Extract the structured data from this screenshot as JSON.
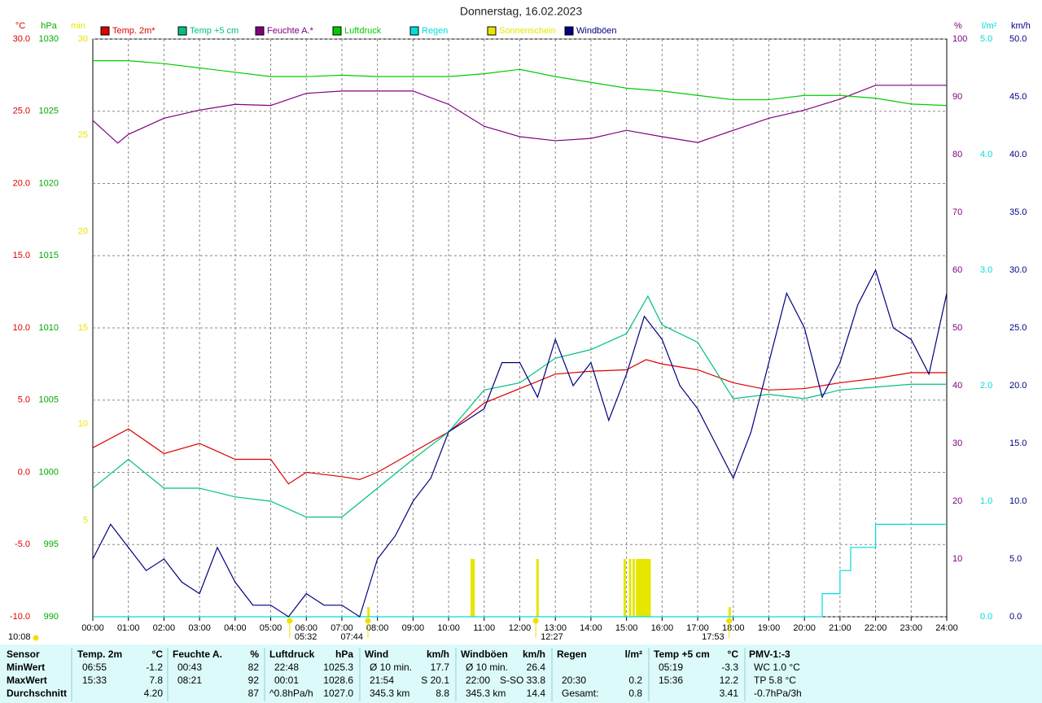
{
  "chart_data": {
    "type": "line",
    "title": "Donnerstag, 16.02.2023",
    "grid": true,
    "xlim": [
      0,
      24
    ],
    "xticks": [
      {
        "value": 0,
        "label": "00:00"
      },
      {
        "value": 1,
        "label": "01:00"
      },
      {
        "value": 2,
        "label": "02:00"
      },
      {
        "value": 3,
        "label": "03:00"
      },
      {
        "value": 4,
        "label": "04:00"
      },
      {
        "value": 5,
        "label": "05:00"
      },
      {
        "value": 6,
        "label": "06:00"
      },
      {
        "value": 7,
        "label": "07:00"
      },
      {
        "value": 8,
        "label": "08:00"
      },
      {
        "value": 9,
        "label": "09:00"
      },
      {
        "value": 10,
        "label": "10:00"
      },
      {
        "value": 11,
        "label": "11:00"
      },
      {
        "value": 12,
        "label": "12:00"
      },
      {
        "value": 13,
        "label": "13:00"
      },
      {
        "value": 14,
        "label": "14:00"
      },
      {
        "value": 15,
        "label": "15:00"
      },
      {
        "value": 16,
        "label": "16:00"
      },
      {
        "value": 17,
        "label": "17:00"
      },
      {
        "value": 18,
        "label": "18:00"
      },
      {
        "value": 19,
        "label": "19:00"
      },
      {
        "value": 20,
        "label": "20:00"
      },
      {
        "value": 21,
        "label": "21:00"
      },
      {
        "value": 22,
        "label": "22:00"
      },
      {
        "value": 23,
        "label": "23:00"
      },
      {
        "value": 24,
        "label": "24:00"
      }
    ],
    "axes": [
      {
        "id": "y",
        "side": "left",
        "unit": "°C",
        "color": "#dd0000",
        "lim": [
          -10,
          30
        ],
        "ticks": [
          {
            "value": 30,
            "label": "30.0"
          },
          {
            "value": 25,
            "label": "25.0"
          },
          {
            "value": 20,
            "label": "20.0"
          },
          {
            "value": 15,
            "label": "15.0"
          },
          {
            "value": 10,
            "label": "10.0"
          },
          {
            "value": 5,
            "label": "5.0"
          },
          {
            "value": 0,
            "label": "0.0"
          },
          {
            "value": -5,
            "label": "-5.0"
          },
          {
            "value": -10,
            "label": "-10.0"
          }
        ]
      },
      {
        "id": "y_hpa",
        "side": "left",
        "unit": "hPa",
        "color": "#00aa00",
        "lim": [
          990,
          1030
        ],
        "ticks": [
          1030,
          1025,
          1020,
          1015,
          1010,
          1005,
          1000,
          995,
          990
        ]
      },
      {
        "id": "y_min",
        "side": "left",
        "unit": "min",
        "color": "#e6e600",
        "lim": [
          0,
          30
        ],
        "ticks": [
          30,
          25,
          20,
          15,
          10,
          5
        ]
      },
      {
        "id": "y2",
        "side": "right",
        "unit": "%",
        "color": "#800080",
        "lim": [
          0,
          100
        ],
        "ticks": [
          100,
          90,
          80,
          70,
          60,
          50,
          40,
          30,
          20,
          10
        ]
      },
      {
        "id": "y3",
        "side": "right",
        "unit": "l/m²",
        "color": "#00dddd",
        "lim": [
          0,
          5
        ],
        "ticks": [
          {
            "value": 5,
            "label": "5.0"
          },
          {
            "value": 4,
            "label": "4.0"
          },
          {
            "value": 3,
            "label": "3.0"
          },
          {
            "value": 2,
            "label": "2.0"
          },
          {
            "value": 1,
            "label": "1.0"
          },
          {
            "value": 0,
            "label": "0.0"
          }
        ]
      },
      {
        "id": "y4",
        "side": "right",
        "unit": "km/h",
        "color": "#000080",
        "lim": [
          0,
          50
        ],
        "ticks": [
          {
            "value": 50,
            "label": "50.0"
          },
          {
            "value": 45,
            "label": "45.0"
          },
          {
            "value": 40,
            "label": "40.0"
          },
          {
            "value": 35,
            "label": "35.0"
          },
          {
            "value": 30,
            "label": "30.0"
          },
          {
            "value": 25,
            "label": "25.0"
          },
          {
            "value": 20,
            "label": "20.0"
          },
          {
            "value": 15,
            "label": "15.0"
          },
          {
            "value": 10,
            "label": "10.0"
          },
          {
            "value": 5,
            "label": "5.0"
          },
          {
            "value": 0,
            "label": "0.0"
          }
        ]
      }
    ],
    "series": [
      {
        "name": "Temp. 2m*",
        "color": "#dd0000",
        "axis": "y",
        "style": "line",
        "x": [
          0,
          1,
          2,
          3,
          4,
          5,
          5.5,
          6,
          7,
          7.5,
          8,
          9,
          10,
          11,
          12,
          13,
          14,
          15,
          15.55,
          16,
          17,
          18,
          19,
          20,
          21,
          22,
          23,
          24
        ],
        "values": [
          1.7,
          3.0,
          1.3,
          2.0,
          0.9,
          0.9,
          -0.8,
          0.0,
          -0.3,
          -0.5,
          0.0,
          1.4,
          2.8,
          4.8,
          5.8,
          6.8,
          7.0,
          7.1,
          7.8,
          7.5,
          7.1,
          6.2,
          5.7,
          5.8,
          6.2,
          6.5,
          6.9,
          6.9
        ]
      },
      {
        "name": "Temp +5 cm",
        "color": "#00c080",
        "axis": "y",
        "style": "line",
        "x": [
          0,
          1,
          2,
          3,
          4,
          5,
          6,
          7,
          8,
          9,
          10,
          11,
          12,
          13,
          14,
          15,
          15.6,
          16,
          17,
          18,
          19,
          20,
          21,
          22,
          23,
          24
        ],
        "values": [
          -1.1,
          0.9,
          -1.1,
          -1.1,
          -1.7,
          -2.0,
          -3.1,
          -3.1,
          -1.1,
          0.9,
          2.8,
          5.7,
          6.2,
          7.9,
          8.5,
          9.6,
          12.2,
          10.2,
          9.0,
          5.1,
          5.4,
          5.1,
          5.7,
          5.9,
          6.1,
          6.1
        ]
      },
      {
        "name": "Feuchte A.*",
        "color": "#800080",
        "axis": "y2",
        "style": "line",
        "x": [
          0,
          0.7,
          1,
          2,
          3,
          4,
          5,
          6,
          7,
          8,
          9,
          10,
          11,
          12,
          13,
          14,
          15,
          16,
          17,
          18,
          19,
          20,
          21,
          22,
          23,
          24
        ],
        "values": [
          85.9,
          82.0,
          83.5,
          86.3,
          87.7,
          88.7,
          88.5,
          90.6,
          91,
          91,
          91,
          88.7,
          84.9,
          83.1,
          82.4,
          82.8,
          84.2,
          83.1,
          82.1,
          84.2,
          86.3,
          87.7,
          89.6,
          92,
          92,
          92
        ]
      },
      {
        "name": "Luftdruck",
        "color": "#00cc00",
        "axis": "y_hpa",
        "style": "line",
        "x": [
          0,
          1,
          2,
          3,
          4,
          5,
          6,
          7,
          8,
          9,
          10,
          11,
          12,
          13,
          14,
          15,
          16,
          17,
          18,
          19,
          20,
          21,
          22,
          23,
          24
        ],
        "values": [
          1028.5,
          1028.5,
          1028.3,
          1028.0,
          1027.7,
          1027.4,
          1027.4,
          1027.5,
          1027.4,
          1027.4,
          1027.4,
          1027.6,
          1027.9,
          1027.4,
          1027.0,
          1026.6,
          1026.4,
          1026.1,
          1025.8,
          1025.8,
          1026.1,
          1026.1,
          1025.9,
          1025.5,
          1025.4
        ]
      },
      {
        "name": "Regen",
        "color": "#00dddd",
        "axis": "y3",
        "style": "step",
        "x": [
          0,
          20.5,
          21,
          21.3,
          22,
          24
        ],
        "values": [
          0,
          0.2,
          0.4,
          0.6,
          0.8,
          0.8
        ]
      },
      {
        "name": "Sonnenschein",
        "color": "#e6e600",
        "axis": "y_min",
        "style": "bar",
        "x": [
          7.75,
          10.65,
          10.7,
          12.5,
          14.95,
          15.1,
          15.2,
          15.3,
          15.35,
          15.4,
          15.45,
          15.5,
          15.55,
          15.6,
          15.65,
          17.9
        ],
        "values": [
          0.5,
          3,
          3,
          3,
          3,
          3,
          3,
          3,
          3,
          3,
          3,
          3,
          3,
          3,
          3,
          0.5
        ]
      },
      {
        "name": "Windböen",
        "color": "#000080",
        "axis": "y4",
        "style": "line",
        "x": [
          0,
          0.5,
          1,
          1.5,
          2,
          2.5,
          3,
          3.5,
          4,
          4.5,
          5,
          5.5,
          6,
          6.5,
          7,
          7.5,
          8,
          8.5,
          9,
          9.5,
          10,
          10.5,
          11,
          11.5,
          12,
          12.5,
          13,
          13.5,
          14,
          14.5,
          15,
          15.5,
          16,
          16.5,
          17,
          17.5,
          18,
          18.5,
          19,
          19.5,
          20,
          20.5,
          21,
          21.5,
          22,
          22.5,
          23,
          23.5,
          24
        ],
        "values": [
          5,
          8,
          6,
          4,
          5,
          3,
          2,
          6,
          3,
          1,
          1,
          0,
          2,
          1,
          1,
          0,
          5,
          7,
          10,
          12,
          16,
          17,
          18,
          22,
          22,
          19,
          24,
          20,
          22,
          17,
          21,
          26,
          24,
          20,
          18,
          15,
          12,
          16,
          22,
          28,
          25,
          19,
          22,
          27,
          30,
          25,
          24,
          21,
          28
        ]
      }
    ],
    "annotations": [
      {
        "label": "10:08"
      },
      {
        "x": 5.533,
        "label": "05:32"
      },
      {
        "x": 7.733,
        "label": "07:44"
      },
      {
        "x": 12.45,
        "label": "12:27"
      },
      {
        "x": 17.883,
        "label": "17:53"
      }
    ]
  },
  "table": {
    "row_labels": [
      "Sensor",
      "MinWert",
      "MaxWert",
      "Durchschnitt"
    ],
    "groups": [
      {
        "name": "Temp. 2m",
        "unit": "°C",
        "min": {
          "left": "06:55",
          "right": "-1.2"
        },
        "max": {
          "left": "15:33",
          "right": "7.8"
        },
        "avg": {
          "right": "4.20"
        }
      },
      {
        "name": "Feuchte A.",
        "unit": "%",
        "min": {
          "left": "00:43",
          "right": "82"
        },
        "max": {
          "left": "08:21",
          "right": "92"
        },
        "avg": {
          "right": "87"
        }
      },
      {
        "name": "Luftdruck",
        "unit": "hPa",
        "min": {
          "left": "22:48",
          "right": "1025.3"
        },
        "max": {
          "left": "00:01",
          "right": "1028.6"
        },
        "avg": {
          "left": "^0.8hPa/h",
          "right": "1027.0"
        }
      },
      {
        "name": "Wind",
        "unit": "km/h",
        "min": {
          "left": "Ø 10 min.",
          "right": "17.7"
        },
        "max": {
          "left": "21:54",
          "right": "S 20.1"
        },
        "avg": {
          "left": "345.3 km",
          "right": "8.8"
        }
      },
      {
        "name": "Windböen",
        "unit": "km/h",
        "min": {
          "left": "Ø 10 min.",
          "right": "26.4"
        },
        "max": {
          "left": "22:00",
          "right": "S-SO 33.8"
        },
        "avg": {
          "left": "345.3 km",
          "right": "14.4"
        }
      },
      {
        "name": "Regen",
        "unit": "l/m²",
        "max": {
          "left": "20:30",
          "right": "0.2"
        },
        "avg": {
          "left": "Gesamt:",
          "right": "0.8"
        }
      },
      {
        "name": "Temp +5 cm",
        "unit": "°C",
        "min": {
          "left": "05:19",
          "right": "-3.3"
        },
        "max": {
          "left": "15:36",
          "right": "12.2"
        },
        "avg": {
          "right": "3.41"
        }
      },
      {
        "name": "PMV-1:-3",
        "min": {
          "left": "WC 1.0 °C"
        },
        "max": {
          "left": "TP 5.8 °C"
        },
        "avg": {
          "left": "-0.7hPa/3h"
        }
      }
    ]
  }
}
